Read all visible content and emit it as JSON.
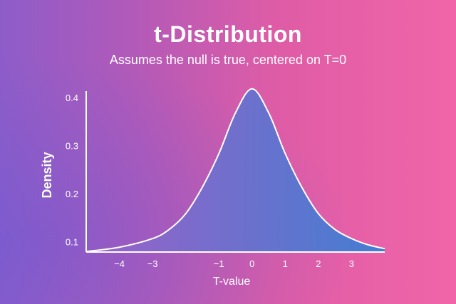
{
  "chart_data": {
    "type": "area",
    "title": "t-Distribution",
    "subtitle": "Assumes the null is true, centered on T=0",
    "xlabel": "T-value",
    "ylabel": "Density",
    "x_ticks": [
      -4,
      -3,
      -1,
      0,
      1,
      2,
      3
    ],
    "x_tick_labels": [
      "−4",
      "−3",
      "−1",
      "0",
      "1",
      "2",
      "3"
    ],
    "y_ticks": [
      0.1,
      0.2,
      0.3,
      0.4
    ],
    "y_tick_labels": [
      "0.1",
      "0.2",
      "0.3",
      "0.4"
    ],
    "xlim": [
      -5,
      4
    ],
    "ylim": [
      0.08,
      0.43
    ],
    "series": [
      {
        "center": 0,
        "peak_density": 0.42,
        "x": [
          -5,
          -4,
          -3,
          -2.5,
          -2,
          -1.5,
          -1,
          -0.5,
          0,
          0.5,
          1,
          1.5,
          2,
          2.5,
          3,
          3.5,
          4
        ],
        "y": [
          0.081,
          0.09,
          0.108,
          0.127,
          0.16,
          0.215,
          0.285,
          0.37,
          0.42,
          0.37,
          0.285,
          0.215,
          0.16,
          0.127,
          0.108,
          0.095,
          0.087
        ]
      }
    ],
    "colors": {
      "fill_start": "#9b62c8",
      "fill_end": "#3a7fd4",
      "line": "#ffffff"
    },
    "grid": false
  }
}
